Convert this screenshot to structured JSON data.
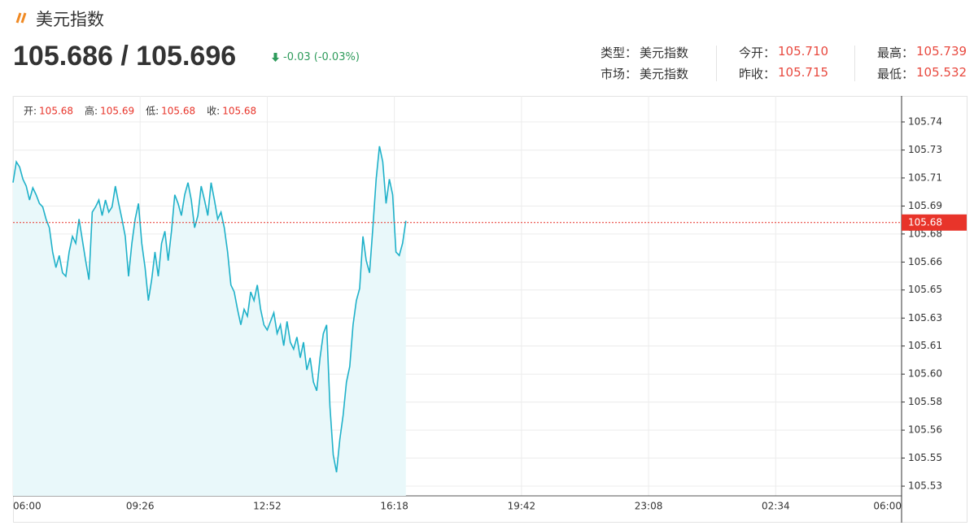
{
  "header": {
    "title": "美元指数",
    "price": "105.686 / 105.696",
    "change": "-0.03 (-0.03%)",
    "info": [
      [
        {
          "label": "类型：",
          "value": "美元指数"
        },
        {
          "label": "今开：",
          "value": "105.710"
        },
        {
          "label": "最高：",
          "value": "105.739"
        }
      ],
      [
        {
          "label": "市场：",
          "value": "美元指数"
        },
        {
          "label": "昨收：",
          "value": "105.715"
        },
        {
          "label": "最低：",
          "value": "105.532"
        }
      ]
    ]
  },
  "chart_data": {
    "type": "line",
    "ohlc": [
      {
        "label": "开:",
        "value": 105.68
      },
      {
        "label": "高:",
        "value": 105.69
      },
      {
        "label": "低:",
        "value": 105.68
      },
      {
        "label": "收:",
        "value": 105.68
      }
    ],
    "x": [
      0,
      5.35,
      10.7,
      16.05,
      21.4,
      26.75,
      32.1,
      37.45,
      42.8,
      48.15,
      53.5,
      58.85,
      64.2,
      69.55,
      74.9,
      80.25,
      85.6,
      90.95,
      96.3,
      101.65,
      107,
      112.35,
      117.7,
      123.05,
      128.4,
      133.75,
      139.1,
      144.45,
      149.8,
      155.15,
      160.5,
      165.85,
      171.2,
      176.55,
      181.9,
      187.25,
      192.6,
      197.95,
      203.3,
      208.65,
      214,
      219.35,
      224.7,
      230.05,
      235.4,
      240.75,
      246.1,
      251.45,
      256.8,
      262.15,
      267.5,
      272.85,
      278.2,
      283.55,
      288.9,
      294.25,
      299.6,
      304.95,
      310.3,
      315.65,
      321,
      326.35,
      331.7,
      337.05,
      342.4,
      347.75,
      353.1,
      358.45,
      363.8,
      369.15,
      374.5,
      379.85,
      385.2,
      390.55,
      395.9,
      401.25,
      406.6,
      411.95,
      417.3,
      422.65,
      428,
      433.35,
      438.7,
      444.05,
      449.4,
      454.75,
      460.1,
      465.45,
      470.8,
      476.15,
      481.5,
      486.85,
      492.2,
      497.55,
      502.9,
      508.25,
      513.6,
      518.95,
      524.3,
      529.65,
      535,
      540.35,
      545.7,
      551.05,
      556.4,
      561.75,
      567.1,
      572.45,
      577.8,
      583.15,
      588.5,
      593.85,
      599.2,
      604.55,
      609.9,
      615.25,
      620.6,
      625.95,
      631.3,
      636.65
    ],
    "series": [
      {
        "color": "#1fb1c9",
        "fill": "#e9f8fa",
        "values": [
          105.707,
          105.719,
          105.716,
          105.709,
          105.705,
          105.697,
          105.704,
          105.7,
          105.695,
          105.693,
          105.686,
          105.681,
          105.667,
          105.658,
          105.665,
          105.655,
          105.653,
          105.667,
          105.676,
          105.672,
          105.686,
          105.674,
          105.662,
          105.651,
          105.69,
          105.693,
          105.697,
          105.688,
          105.697,
          105.69,
          105.693,
          105.705,
          105.695,
          105.686,
          105.676,
          105.653,
          105.672,
          105.686,
          105.695,
          105.672,
          105.658,
          105.639,
          105.651,
          105.667,
          105.653,
          105.672,
          105.679,
          105.662,
          105.679,
          105.7,
          105.695,
          105.688,
          105.7,
          105.707,
          105.697,
          105.681,
          105.688,
          105.705,
          105.697,
          105.688,
          105.707,
          105.697,
          105.686,
          105.69,
          105.681,
          105.667,
          105.648,
          105.644,
          105.634,
          105.625,
          105.634,
          105.63,
          105.644,
          105.639,
          105.648,
          105.634,
          105.625,
          105.622,
          105.627,
          105.632,
          105.62,
          105.625,
          105.613,
          105.627,
          105.615,
          105.611,
          105.618,
          105.606,
          105.615,
          105.599,
          105.606,
          105.592,
          105.587,
          105.606,
          105.62,
          105.625,
          105.578,
          105.55,
          105.54,
          105.559,
          105.573,
          105.592,
          105.601,
          105.625,
          105.639,
          105.646,
          105.676,
          105.662,
          105.655,
          105.681,
          105.709,
          105.728,
          105.719,
          105.695,
          105.709,
          105.7,
          105.667,
          105.665,
          105.672,
          105.685
        ]
      }
    ],
    "xlim": [
      0,
      1440
    ],
    "xticks": [
      {
        "value": 0,
        "label": "06:00"
      },
      {
        "value": 206,
        "label": "09:26"
      },
      {
        "value": 412,
        "label": "12:52"
      },
      {
        "value": 618,
        "label": "16:18"
      },
      {
        "value": 824,
        "label": "19:42"
      },
      {
        "value": 1030,
        "label": "23:08"
      },
      {
        "value": 1236,
        "label": "02:34"
      },
      {
        "value": 1440,
        "label": "06:00"
      }
    ],
    "ylim": [
      105.5264,
      105.757
    ],
    "yticks": [
      {
        "value": 105.532,
        "label": "105.53"
      },
      {
        "value": 105.5482,
        "label": "105.55"
      },
      {
        "value": 105.5643,
        "label": "105.56"
      },
      {
        "value": 105.5805,
        "label": "105.58"
      },
      {
        "value": 105.5966,
        "label": "105.60"
      },
      {
        "value": 105.6128,
        "label": "105.61"
      },
      {
        "value": 105.6289,
        "label": "105.63"
      },
      {
        "value": 105.6451,
        "label": "105.65"
      },
      {
        "value": 105.6612,
        "label": "105.66"
      },
      {
        "value": 105.6774,
        "label": "105.68"
      },
      {
        "value": 105.6935,
        "label": "105.69"
      },
      {
        "value": 105.7097,
        "label": "105.71"
      },
      {
        "value": 105.7258,
        "label": "105.73"
      },
      {
        "value": 105.742,
        "label": "105.74"
      }
    ],
    "last_price": {
      "value": 105.684,
      "label": "105.68",
      "color": "#e8342a"
    },
    "grid": true
  }
}
